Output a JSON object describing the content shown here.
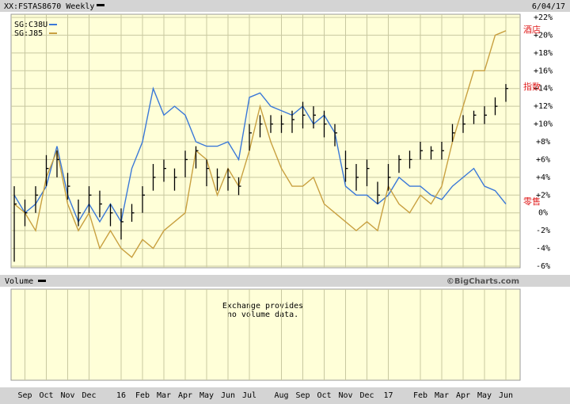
{
  "chart_data": {
    "type": "ohlc",
    "title": "XX:FSTAS8670 Weekly",
    "date": "6/04/17",
    "categories": [
      null,
      "Sep",
      null,
      "Oct",
      null,
      "Nov",
      null,
      "Dec",
      null,
      null,
      "16",
      null,
      "Feb",
      null,
      "Mar",
      null,
      "Apr",
      null,
      "May",
      null,
      "Jun",
      null,
      "Jul",
      null,
      null,
      "Aug",
      null,
      "Sep",
      null,
      "Oct",
      null,
      "Nov",
      null,
      "Dec",
      null,
      "17",
      null,
      null,
      "Feb",
      null,
      "Mar",
      null,
      "Apr",
      null,
      "May",
      null,
      "Jun"
    ],
    "bars": {
      "color": "#000000",
      "high": [
        3,
        1.5,
        3,
        6.5,
        7,
        4.5,
        1.5,
        3,
        2.5,
        1,
        0.5,
        1,
        3,
        5.5,
        6,
        5,
        7,
        7.5,
        6,
        5,
        5,
        4,
        10,
        11,
        11,
        11,
        11.5,
        12.5,
        12,
        11.5,
        10,
        7,
        5.5,
        6,
        3.5,
        5.5,
        6.5,
        7,
        8,
        7.5,
        8,
        10,
        11,
        11.5,
        12,
        13,
        14.5
      ],
      "low": [
        -5.5,
        -1.5,
        0,
        3,
        4,
        1.5,
        -1.5,
        0,
        -0.5,
        -1.5,
        -3,
        -1,
        0,
        2.5,
        3.5,
        2.5,
        4,
        5,
        3,
        2.5,
        2.5,
        2,
        7,
        8.5,
        9,
        9,
        9,
        9.5,
        9.5,
        8.5,
        7.5,
        3.5,
        2.5,
        3,
        1,
        2.5,
        4.5,
        5,
        6,
        6,
        6,
        8,
        9,
        10,
        10,
        11,
        12.5
      ],
      "close": [
        1,
        0,
        2,
        5,
        6,
        3,
        0,
        2,
        1,
        0,
        -1,
        0,
        2,
        4,
        5,
        4,
        6,
        7,
        5,
        4,
        4,
        3,
        9,
        10,
        10,
        10,
        10.5,
        11,
        11,
        10,
        9,
        5,
        4,
        5,
        2,
        4,
        6,
        6,
        7,
        7,
        7,
        9,
        10,
        11,
        11,
        12,
        14
      ]
    },
    "series": [
      {
        "name": "SG:C38U",
        "color": "#3a78d8",
        "values": [
          2,
          0,
          1,
          3,
          7.5,
          2,
          -1,
          1,
          -1,
          1,
          -1,
          5,
          8,
          14,
          11,
          12,
          11,
          8,
          7.5,
          7.5,
          8,
          6,
          13,
          13.5,
          12,
          11.5,
          11,
          12,
          10,
          11,
          9,
          3,
          2,
          2,
          1,
          2,
          4,
          3,
          3,
          2,
          1.5,
          3,
          4,
          5,
          3,
          2.5,
          1
        ]
      },
      {
        "name": "SG:J85",
        "color": "#c8a040",
        "values": [
          1,
          0,
          -2,
          4,
          7,
          1,
          -2,
          0,
          -4,
          -2,
          -4,
          -5,
          -3,
          -4,
          -2,
          -1,
          0,
          7,
          6,
          2,
          5,
          3,
          7,
          12,
          8,
          5,
          3,
          3,
          4,
          1,
          0,
          -1,
          -2,
          -1,
          -2,
          3,
          1,
          0,
          2,
          1,
          3,
          8,
          12,
          16,
          16,
          20,
          20.5
        ]
      }
    ],
    "ylim": [
      -6,
      22
    ],
    "yticks": [
      {
        "value": 22,
        "label": "+22%"
      },
      {
        "value": 20,
        "label": "+20%"
      },
      {
        "value": 18,
        "label": "+18%"
      },
      {
        "value": 16,
        "label": "+16%"
      },
      {
        "value": 14,
        "label": "+14%"
      },
      {
        "value": 12,
        "label": "+12%"
      },
      {
        "value": 10,
        "label": "+10%"
      },
      {
        "value": 8,
        "label": "+8%"
      },
      {
        "value": 6,
        "label": "+6%"
      },
      {
        "value": 4,
        "label": "+4%"
      },
      {
        "value": 2,
        "label": "+2%"
      },
      {
        "value": 0,
        "label": "0%"
      },
      {
        "value": -2,
        "label": "-2%"
      },
      {
        "value": -4,
        "label": "-4%"
      },
      {
        "value": -6,
        "label": "-6%"
      }
    ],
    "grid": true,
    "annotations": [
      "酒店",
      "指数",
      "零售"
    ],
    "volume_panel": {
      "label": "Volume",
      "credit": "©BigCharts.com",
      "message": [
        "Exchange provides",
        "no volume data."
      ]
    }
  }
}
